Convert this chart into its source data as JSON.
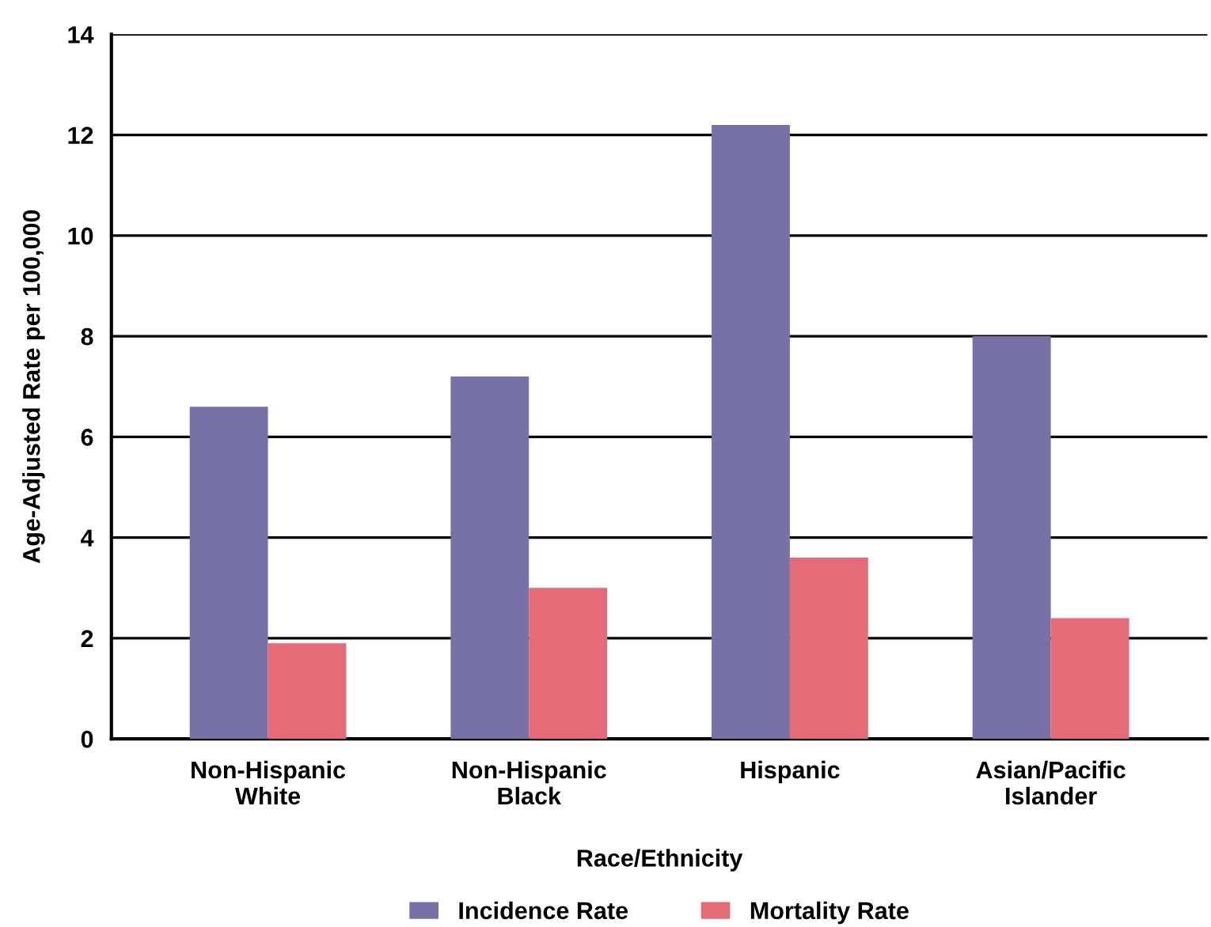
{
  "chart_data": {
    "type": "bar",
    "xlabel": "Race/Ethnicity",
    "ylabel": "Age-Adjusted Rate per 100,000",
    "categories": [
      "Non-Hispanic\nWhite",
      "Non-Hispanic\nBlack",
      "Hispanic",
      "Asian/Pacific\nIslander"
    ],
    "series": [
      {
        "name": "Incidence Rate",
        "color": "#7672a8",
        "values": [
          6.6,
          7.2,
          12.2,
          8.0
        ]
      },
      {
        "name": "Mortality Rate",
        "color": "#e56b78",
        "values": [
          1.9,
          3.0,
          3.6,
          2.4
        ]
      }
    ],
    "ylim": [
      0,
      14
    ],
    "yticks": [
      0,
      2,
      4,
      6,
      8,
      10,
      12,
      14
    ],
    "grid": "y",
    "legend": "bottom"
  }
}
